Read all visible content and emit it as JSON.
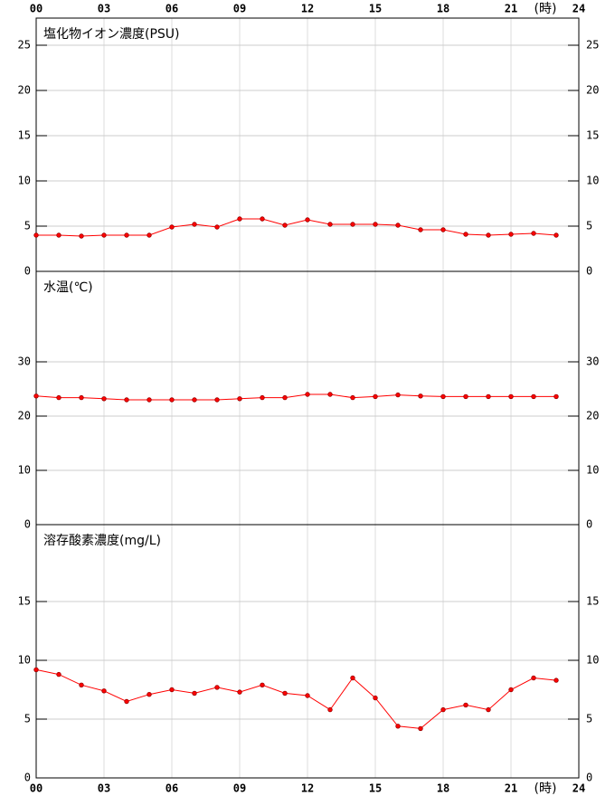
{
  "chart_data": [
    {
      "type": "line",
      "title": "塩化物イオン濃度(PSU)",
      "xlabel": "(時)",
      "x": [
        0,
        1,
        2,
        3,
        4,
        5,
        6,
        7,
        8,
        9,
        10,
        11,
        12,
        13,
        14,
        15,
        16,
        17,
        18,
        19,
        20,
        21,
        22,
        23
      ],
      "xlim": [
        0,
        24
      ],
      "xticks": [
        {
          "value": 0,
          "label": "00"
        },
        {
          "value": 3,
          "label": "03"
        },
        {
          "value": 6,
          "label": "06"
        },
        {
          "value": 9,
          "label": "09"
        },
        12,
        15,
        18,
        21,
        24
      ],
      "ylim": [
        0,
        28
      ],
      "yticks": [
        0,
        5,
        10,
        15,
        20,
        25
      ],
      "grid": true,
      "series": [
        {
          "color": "#ff0000",
          "values": [
            4.0,
            4.0,
            3.9,
            4.0,
            4.0,
            4.0,
            4.9,
            5.2,
            4.9,
            5.8,
            5.8,
            5.1,
            5.7,
            5.2,
            5.2,
            5.2,
            5.1,
            4.6,
            4.6,
            4.1,
            4.0,
            4.1,
            4.2,
            4.0
          ]
        }
      ]
    },
    {
      "type": "line",
      "title": "水温(℃)",
      "x": [
        0,
        1,
        2,
        3,
        4,
        5,
        6,
        7,
        8,
        9,
        10,
        11,
        12,
        13,
        14,
        15,
        16,
        17,
        18,
        19,
        20,
        21,
        22,
        23
      ],
      "xlim": [
        0,
        24
      ],
      "xticks": [
        0,
        3,
        6,
        9,
        12,
        15,
        18,
        21,
        24
      ],
      "ylim": [
        0,
        46.67
      ],
      "yticks": [
        0,
        10,
        20,
        30
      ],
      "grid": true,
      "series": [
        {
          "color": "#ff0000",
          "values": [
            23.7,
            23.4,
            23.4,
            23.2,
            23.0,
            23.0,
            23.0,
            23.0,
            23.0,
            23.2,
            23.4,
            23.4,
            24.0,
            24.0,
            23.4,
            23.6,
            23.9,
            23.7,
            23.6,
            23.6,
            23.6,
            23.6,
            23.6,
            23.6
          ]
        }
      ]
    },
    {
      "type": "line",
      "title": "溶存酸素濃度(mg/L)",
      "xlabel": "(時)",
      "x": [
        0,
        1,
        2,
        3,
        4,
        5,
        6,
        7,
        8,
        9,
        10,
        11,
        12,
        13,
        14,
        15,
        16,
        17,
        18,
        19,
        20,
        21,
        22,
        23
      ],
      "xlim": [
        0,
        24
      ],
      "xticks": [
        {
          "value": 0,
          "label": "00"
        },
        {
          "value": 3,
          "label": "03"
        },
        {
          "value": 6,
          "label": "06"
        },
        {
          "value": 9,
          "label": "09"
        },
        12,
        15,
        18,
        21,
        24
      ],
      "ylim": [
        0,
        21.54
      ],
      "yticks": [
        0,
        5,
        10,
        15
      ],
      "grid": true,
      "series": [
        {
          "color": "#ff0000",
          "values": [
            9.2,
            8.8,
            7.9,
            7.4,
            6.5,
            7.1,
            7.5,
            7.2,
            7.7,
            7.3,
            7.9,
            7.2,
            7.0,
            5.8,
            8.5,
            6.8,
            4.4,
            4.2,
            5.8,
            6.2,
            5.8,
            7.5,
            8.5,
            8.3
          ]
        }
      ]
    }
  ]
}
